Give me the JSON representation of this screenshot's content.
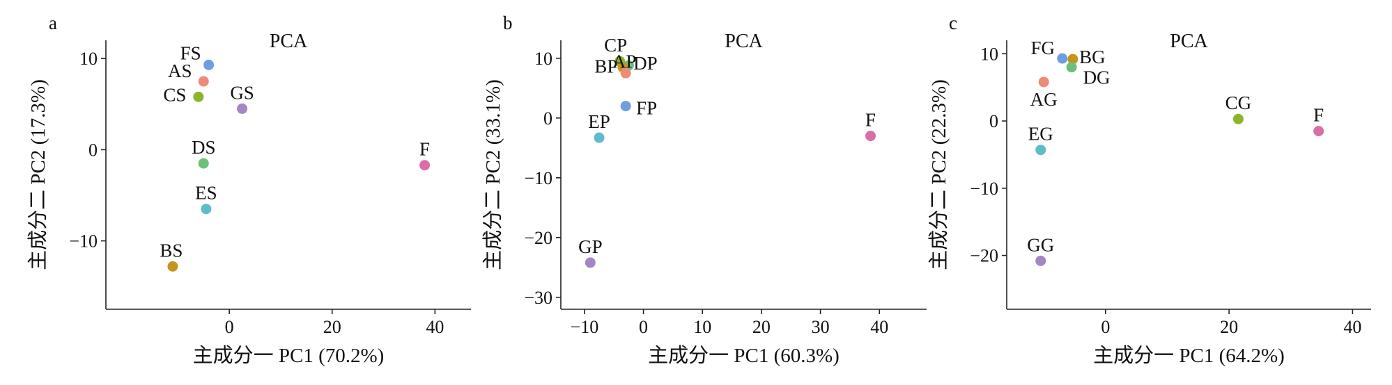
{
  "chart_data": [
    {
      "type": "scatter",
      "panel": "a",
      "title": "PCA",
      "xlabel": "主成分一 PC1 (70.2%)",
      "ylabel": "主成分二 PC2 (17.3%)",
      "xlim": [
        -24,
        47
      ],
      "ylim": [
        -17.5,
        12
      ],
      "xticks": [
        0,
        20,
        40
      ],
      "yticks": [
        -10,
        0,
        10
      ],
      "points": [
        {
          "label": "FS",
          "x": -4.0,
          "y": 9.3,
          "color": "#6d9ee0"
        },
        {
          "label": "AS",
          "x": -5.0,
          "y": 7.5,
          "color": "#ee8a78"
        },
        {
          "label": "CS",
          "x": -6.0,
          "y": 5.8,
          "color": "#8db52a"
        },
        {
          "label": "GS",
          "x": 2.5,
          "y": 4.5,
          "color": "#a387c4"
        },
        {
          "label": "DS",
          "x": -5.0,
          "y": -1.5,
          "color": "#6dbf7a"
        },
        {
          "label": "ES",
          "x": -4.5,
          "y": -6.5,
          "color": "#5fbcc9"
        },
        {
          "label": "BS",
          "x": -11.0,
          "y": -12.8,
          "color": "#c4961e"
        },
        {
          "label": "F",
          "x": 38.0,
          "y": -1.7,
          "color": "#d96fa6"
        }
      ]
    },
    {
      "type": "scatter",
      "panel": "b",
      "title": "PCA",
      "xlabel": "主成分一 PC1 (60.3%)",
      "ylabel": "主成分二 PC2 (33.1%)",
      "xlim": [
        -14,
        48
      ],
      "ylim": [
        -32,
        13
      ],
      "xticks": [
        -10,
        0,
        10,
        20,
        30,
        40
      ],
      "yticks": [
        -30,
        -20,
        -10,
        0,
        10
      ],
      "points": [
        {
          "label": "CP",
          "x": -4.0,
          "y": 9.5,
          "color": "#8db52a"
        },
        {
          "label": "DP",
          "x": -2.5,
          "y": 8.8,
          "color": "#6dbf7a"
        },
        {
          "label": "BP",
          "x": -3.5,
          "y": 8.5,
          "color": "#c4961e"
        },
        {
          "label": "AP",
          "x": -3.0,
          "y": 7.5,
          "color": "#ee8a78"
        },
        {
          "label": "FP",
          "x": -3.0,
          "y": 2.0,
          "color": "#6d9ee0"
        },
        {
          "label": "EP",
          "x": -7.5,
          "y": -3.3,
          "color": "#5fbcc9"
        },
        {
          "label": "GP",
          "x": -9.0,
          "y": -24.2,
          "color": "#a387c4"
        },
        {
          "label": "F",
          "x": 38.5,
          "y": -3.0,
          "color": "#d96fa6"
        }
      ]
    },
    {
      "type": "scatter",
      "panel": "c",
      "title": "PCA",
      "xlabel": "主成分一 PC1 (64.2%)",
      "ylabel": "主成分二 PC2 (22.3%)",
      "xlim": [
        -16,
        43
      ],
      "ylim": [
        -28,
        12
      ],
      "xticks": [
        0,
        20,
        40
      ],
      "yticks": [
        -20,
        -10,
        0,
        10
      ],
      "points": [
        {
          "label": "FG",
          "x": -7.0,
          "y": 9.3,
          "color": "#6d9ee0"
        },
        {
          "label": "BG",
          "x": -5.3,
          "y": 9.2,
          "color": "#c4961e"
        },
        {
          "label": "DG",
          "x": -5.5,
          "y": 8.0,
          "color": "#6dbf7a"
        },
        {
          "label": "AG",
          "x": -10.0,
          "y": 5.8,
          "color": "#ee8a78"
        },
        {
          "label": "CG",
          "x": 21.5,
          "y": 0.3,
          "color": "#8db52a"
        },
        {
          "label": "F",
          "x": 34.5,
          "y": -1.5,
          "color": "#d96fa6"
        },
        {
          "label": "EG",
          "x": -10.5,
          "y": -4.3,
          "color": "#5fbcc9"
        },
        {
          "label": "GG",
          "x": -10.5,
          "y": -20.8,
          "color": "#a387c4"
        }
      ]
    }
  ]
}
